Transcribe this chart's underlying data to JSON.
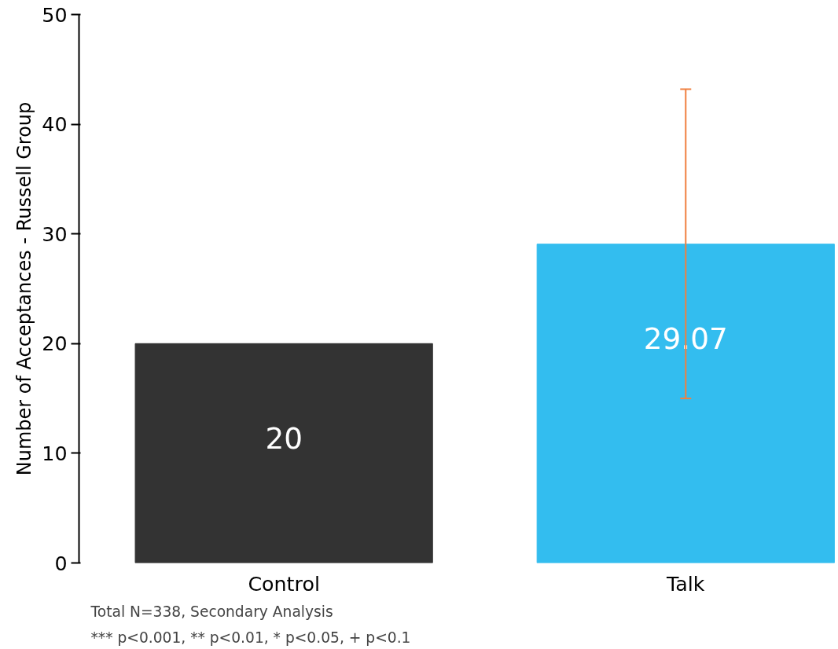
{
  "chart_data": {
    "type": "bar",
    "ylabel": "Number of Acceptances - Russell Group",
    "categories": [
      "Control",
      "Talk"
    ],
    "values": [
      20,
      29.07
    ],
    "colors": [
      "#333333",
      "#33bdef"
    ],
    "errors": [
      null,
      [
        15.0,
        43.2
      ]
    ],
    "ylim": [
      0,
      50
    ],
    "yticks": [
      0,
      10,
      20,
      30,
      40,
      50
    ],
    "grid": false,
    "data_labels": true,
    "annotations": [
      "Total N=338, Secondary Analysis",
      "*** p<0.001, ** p<0.01, * p<0.05, + p<0.1"
    ]
  }
}
